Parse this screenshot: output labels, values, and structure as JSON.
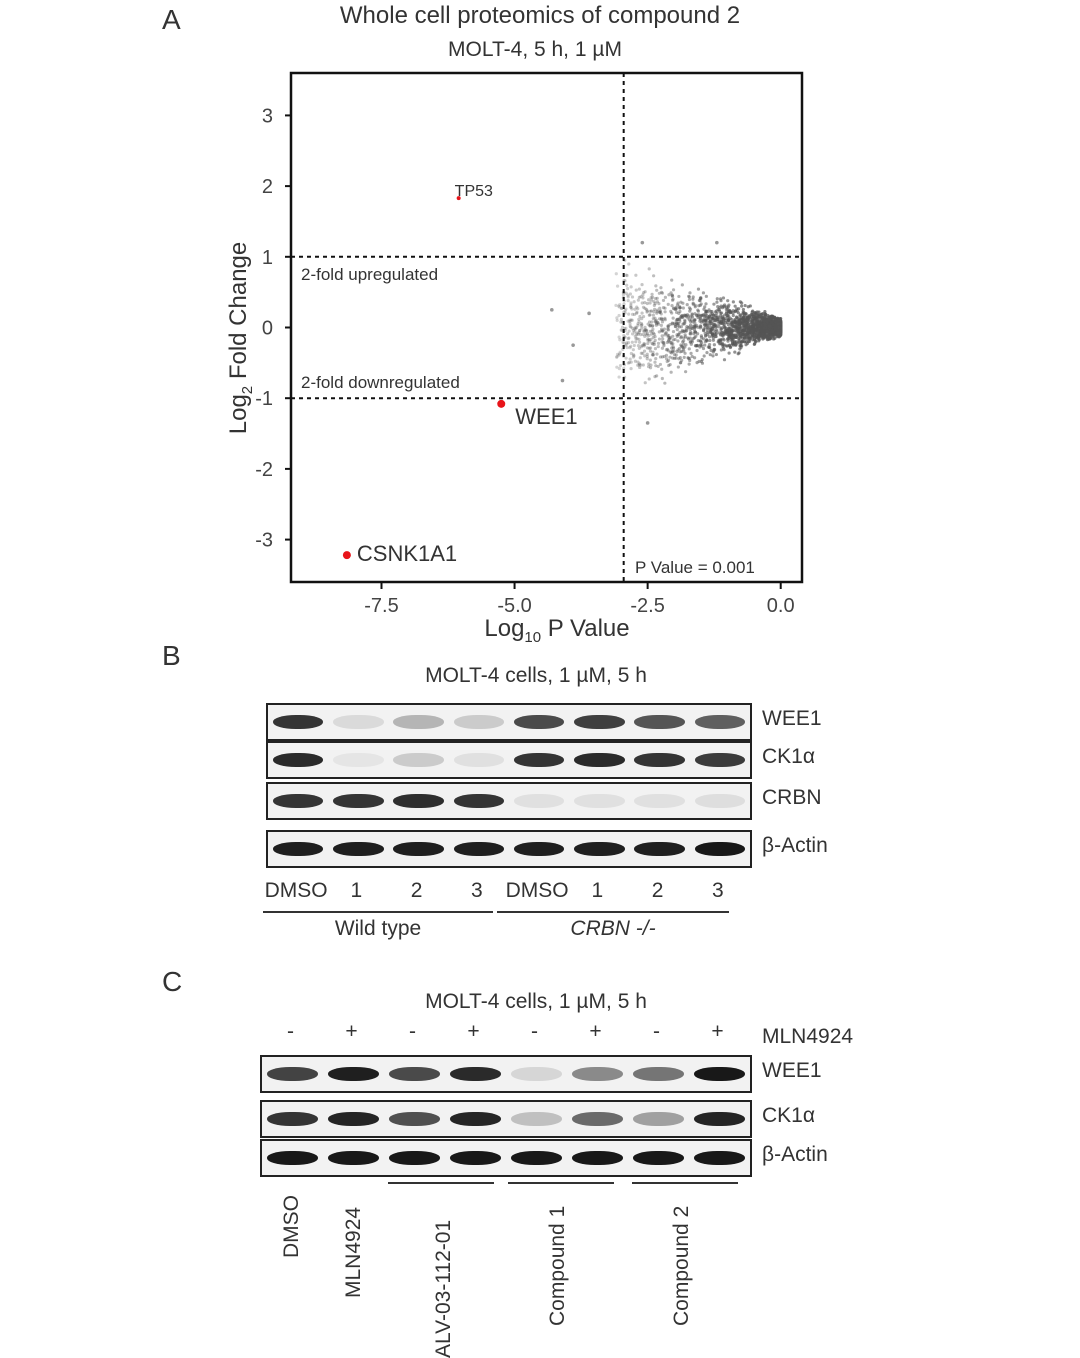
{
  "panel_a": {
    "letter": "A",
    "title": "Whole cell proteomics of compound 2",
    "subtitle": "MOLT-4, 5 h, 1 µM",
    "chart_data": {
      "type": "scatter",
      "title": "Whole cell proteomics of compound 2",
      "subtitle": "MOLT-4, 5 h, 1 µM",
      "xlabel": "Log10 P Value",
      "ylabel": "Log2 Fold Change",
      "xlim": [
        -9.2,
        0.4
      ],
      "ylim": [
        -3.6,
        3.6
      ],
      "x_ticks": [
        "-7.5",
        "-5.0",
        "-2.5",
        "0.0"
      ],
      "y_ticks": [
        "3",
        "2",
        "1",
        "0",
        "-1",
        "-2",
        "-3"
      ],
      "grid": false,
      "thresholds": {
        "up_fold": 1,
        "down_fold": -1,
        "p_line": -2.95,
        "up_label": "2-fold upregulated",
        "down_label": "2-fold downregulated",
        "p_label": "P Value = 0.001"
      },
      "highlighted": [
        {
          "name": "TP53",
          "x": -6.05,
          "y": 1.83
        },
        {
          "name": "WEE1",
          "x": -5.25,
          "y": -1.08
        },
        {
          "name": "CSNK1A1",
          "x": -8.15,
          "y": -3.22
        }
      ],
      "background_cloud": {
        "x_range": [
          -3.0,
          0.0
        ],
        "y_range": [
          -0.6,
          0.6
        ],
        "color": "#555555"
      }
    }
  },
  "panel_b": {
    "letter": "B",
    "title": "MOLT-4 cells, 1 µM, 5 h",
    "rows": [
      {
        "label": "WEE1",
        "intensity": [
          0.85,
          0.08,
          0.25,
          0.15,
          0.75,
          0.8,
          0.7,
          0.65
        ]
      },
      {
        "label": "CK1α",
        "intensity": [
          0.9,
          0.03,
          0.15,
          0.05,
          0.85,
          0.9,
          0.85,
          0.82
        ]
      },
      {
        "label": "CRBN",
        "intensity": [
          0.85,
          0.85,
          0.88,
          0.85,
          0.05,
          0.05,
          0.05,
          0.06
        ]
      },
      {
        "label": "β-Actin",
        "intensity": [
          0.95,
          0.95,
          0.95,
          0.95,
          0.95,
          0.95,
          0.95,
          0.98
        ]
      }
    ],
    "lanes": [
      "DMSO",
      "1",
      "2",
      "3",
      "DMSO",
      "1",
      "2",
      "3"
    ],
    "groups": [
      "Wild type",
      "CRBN -/-"
    ]
  },
  "panel_c": {
    "letter": "C",
    "title": "MOLT-4 cells, 1 µM, 5 h",
    "signs": [
      "-",
      "+",
      "-",
      "+",
      "-",
      "+",
      "-",
      "+"
    ],
    "signs_label": "MLN4924",
    "rows": [
      {
        "label": "WEE1",
        "intensity": [
          0.78,
          0.95,
          0.75,
          0.9,
          0.1,
          0.45,
          0.55,
          0.98
        ]
      },
      {
        "label": "CK1α",
        "intensity": [
          0.85,
          0.92,
          0.72,
          0.92,
          0.2,
          0.6,
          0.35,
          0.92
        ]
      },
      {
        "label": "β-Actin",
        "intensity": [
          0.98,
          0.98,
          0.98,
          0.98,
          0.98,
          0.98,
          0.98,
          0.98
        ]
      }
    ],
    "treatments": [
      "DMSO",
      "MLN4924",
      "ALV-03-112-01",
      "Compound 1",
      "Compound 2"
    ]
  }
}
